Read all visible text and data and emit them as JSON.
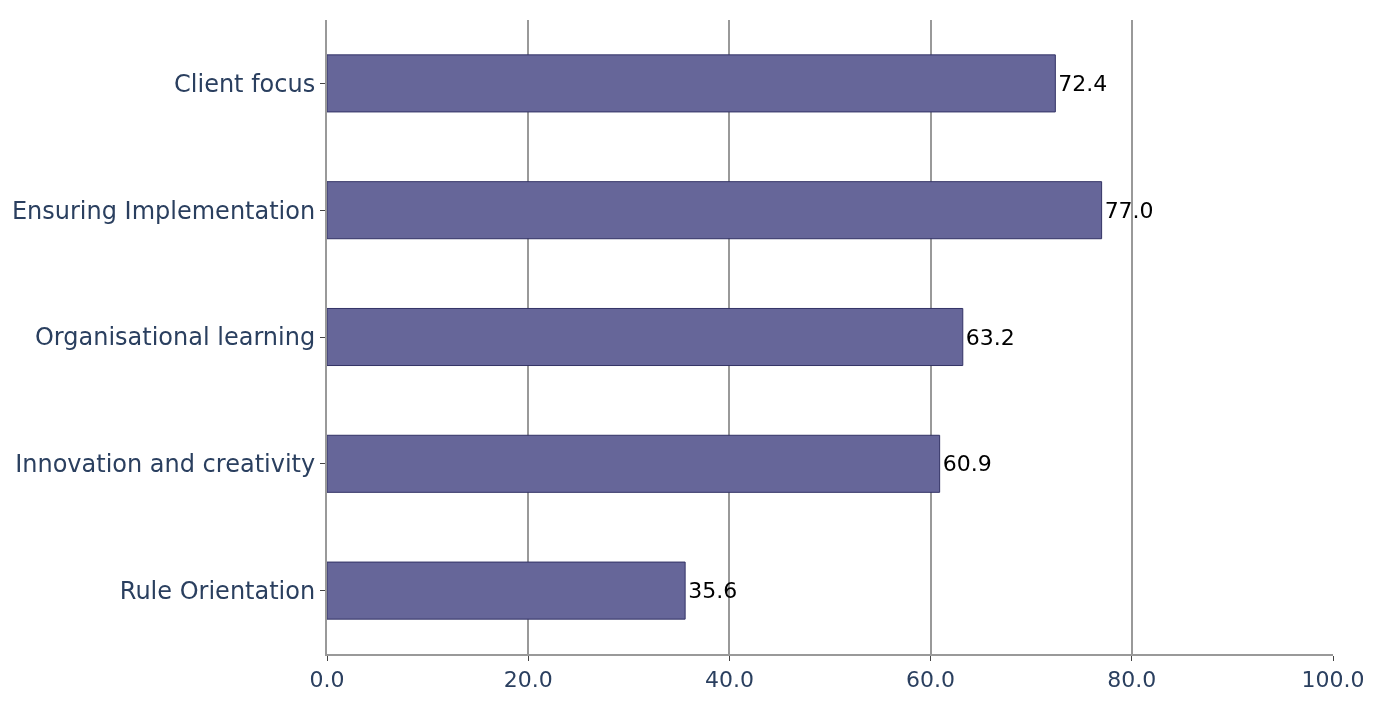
{
  "chart_data": {
    "type": "bar",
    "orientation": "horizontal",
    "categories": [
      "Client focus",
      "Ensuring Implementation",
      "Organisational learning",
      "Innovation and creativity",
      "Rule Orientation"
    ],
    "values": [
      72.4,
      77.0,
      63.2,
      60.9,
      35.6
    ],
    "value_labels": [
      "72.4",
      "77.0",
      "63.2",
      "60.9",
      "35.6"
    ],
    "color": "#666699",
    "xlim": [
      0,
      100
    ],
    "xticks": [
      {
        "value": 0,
        "label": "0.0"
      },
      {
        "value": 20,
        "label": "20.0"
      },
      {
        "value": 40,
        "label": "40.0"
      },
      {
        "value": 60,
        "label": "60.0"
      },
      {
        "value": 80,
        "label": "80.0"
      },
      {
        "value": 100,
        "label": "100.0"
      }
    ],
    "grid": "x"
  }
}
